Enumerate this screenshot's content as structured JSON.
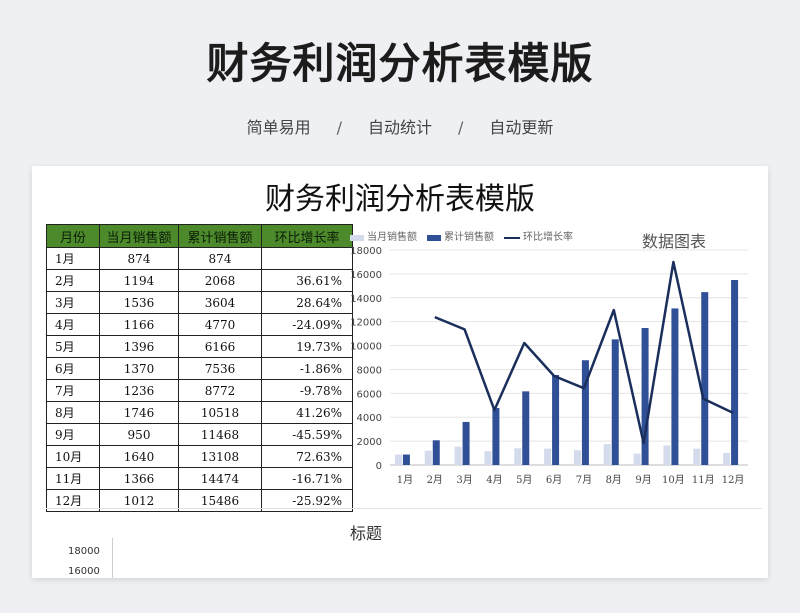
{
  "header": {
    "title": "财务利润分析表模版",
    "tags": [
      "简单易用",
      "自动统计",
      "自动更新"
    ],
    "separator": "/"
  },
  "sheet": {
    "title": "财务利润分析表模版",
    "table": {
      "columns": [
        "月份",
        "当月销售额",
        "累计销售额",
        "环比增长率"
      ],
      "rows": [
        [
          "1月",
          "874",
          "874",
          ""
        ],
        [
          "2月",
          "1194",
          "2068",
          "36.61%"
        ],
        [
          "3月",
          "1536",
          "3604",
          "28.64%"
        ],
        [
          "4月",
          "1166",
          "4770",
          "-24.09%"
        ],
        [
          "5月",
          "1396",
          "6166",
          "19.73%"
        ],
        [
          "6月",
          "1370",
          "7536",
          "-1.86%"
        ],
        [
          "7月",
          "1236",
          "8772",
          "-9.78%"
        ],
        [
          "8月",
          "1746",
          "10518",
          "41.26%"
        ],
        [
          "9月",
          "950",
          "11468",
          "-45.59%"
        ],
        [
          "10月",
          "1640",
          "13108",
          "72.63%"
        ],
        [
          "11月",
          "1366",
          "14474",
          "-16.71%"
        ],
        [
          "12月",
          "1012",
          "15486",
          "-25.92%"
        ]
      ]
    },
    "second_chart": {
      "title": "标题",
      "ticks": [
        "18000",
        "16000"
      ]
    }
  },
  "chart_data": {
    "type": "bar",
    "title": "数据图表",
    "categories": [
      "1月",
      "2月",
      "3月",
      "4月",
      "5月",
      "6月",
      "7月",
      "8月",
      "9月",
      "10月",
      "11月",
      "12月"
    ],
    "series": [
      {
        "name": "当月销售额",
        "type": "bar",
        "color": "#d4dbed",
        "values": [
          874,
          1194,
          1536,
          1166,
          1396,
          1370,
          1236,
          1746,
          950,
          1640,
          1366,
          1012
        ]
      },
      {
        "name": "累计销售额",
        "type": "bar",
        "color": "#2f4f96",
        "values": [
          874,
          2068,
          3604,
          4770,
          6166,
          7536,
          8772,
          10518,
          11468,
          13108,
          14474,
          15486
        ]
      },
      {
        "name": "环比增长率",
        "type": "line",
        "color": "#1b2f5c",
        "values": [
          null,
          36.61,
          28.64,
          -24.09,
          19.73,
          -1.86,
          -9.78,
          41.26,
          -45.59,
          72.63,
          -16.71,
          -25.92
        ]
      }
    ],
    "ylim": [
      0,
      18000
    ],
    "yticks": [
      0,
      2000,
      4000,
      6000,
      8000,
      10000,
      12000,
      14000,
      16000,
      18000
    ],
    "grid": true,
    "legend": "top-left"
  }
}
